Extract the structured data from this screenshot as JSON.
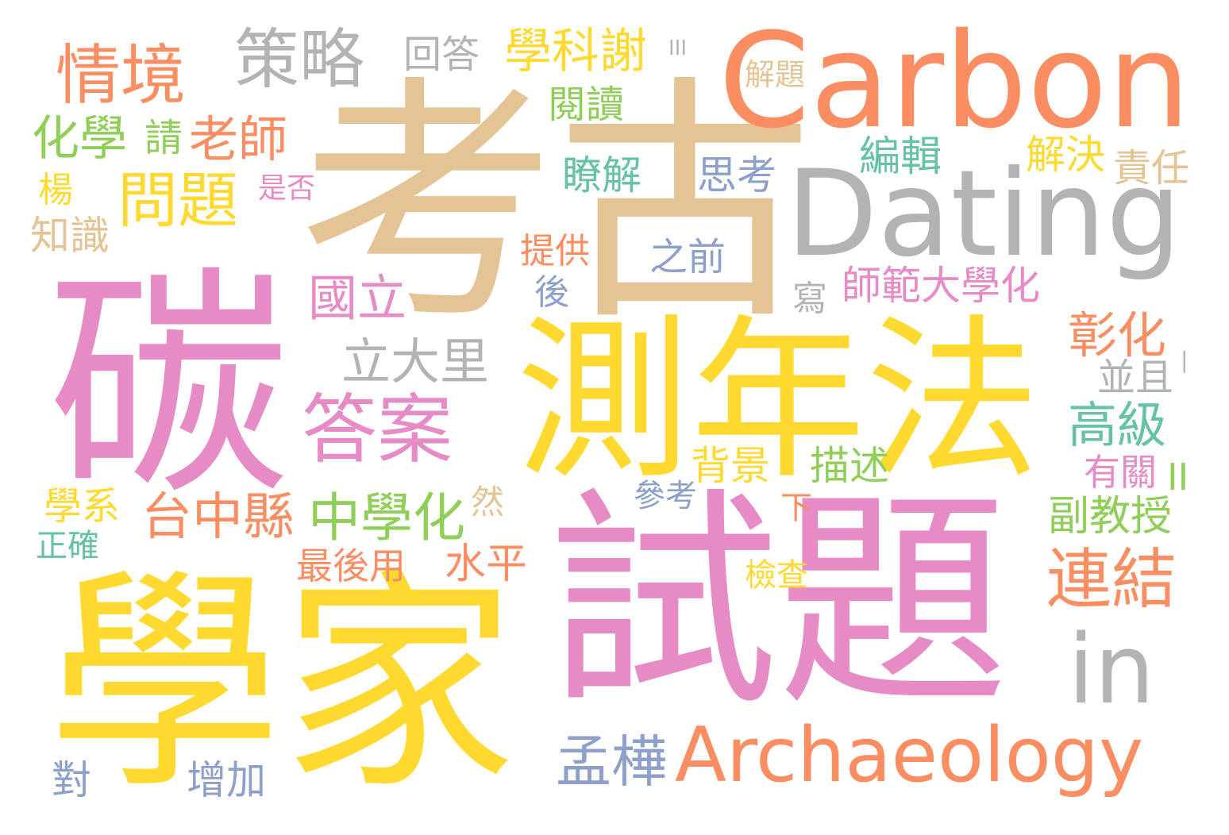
{
  "palette": {
    "green": "#8fcf57",
    "orange": "#fb8d62",
    "pink": "#e68bc5",
    "yellow": "#ffd92f",
    "tan": "#e4c494",
    "gray": "#b3b3b3",
    "blue": "#8da0cb",
    "teal": "#66c2a5"
  },
  "words": {
    "kaogu": "考古",
    "tan": "碳",
    "xuejia": "學家",
    "shiti": "試題",
    "cenianfa": "測年法",
    "carbon": "Carbon",
    "dating": "Dating",
    "in": "in",
    "archaeology": "Archaeology",
    "qingjing": "情境",
    "celue": "策略",
    "huida": "回答",
    "xuekexie": "學科謝",
    "iii": "III",
    "jieti": "解題",
    "yuedu": "閱讀",
    "huaxue": "化學",
    "qing": "請",
    "laoshi": "老師",
    "wenti": "問題",
    "yang": "楊",
    "shifou": "是否",
    "zhishi": "知識",
    "liaojie": "瞭解",
    "sikao": "思考",
    "bianji": "編輯",
    "jiejue": "解決",
    "zeren": "責任",
    "tigong": "提供",
    "zhiqian": "之前",
    "hou": "後",
    "guoli": "國立",
    "xie": "寫",
    "shifan": "師範大學化",
    "lidali": "立大里",
    "zhanghua": "彰化",
    "bingqie": "並且",
    "daan": "答案",
    "gaoji": "高級",
    "beijing": "背景",
    "miaoshu": "描述",
    "youguan": "有關",
    "ii": "II",
    "xuexi": "學系",
    "ran": "然",
    "cankao": "參考",
    "xia": "下",
    "fujiaoshou": "副教授",
    "zhengque": "正確",
    "taizhongxian": "台中縣",
    "zhongxuehua": "中學化",
    "zuihouyong": "最後用",
    "shuiping": "水平",
    "jiancha": "檢查",
    "lianjie": "連結",
    "menghua": "孟樺",
    "dui": "對",
    "zengjia": "增加",
    "bar": "|"
  }
}
